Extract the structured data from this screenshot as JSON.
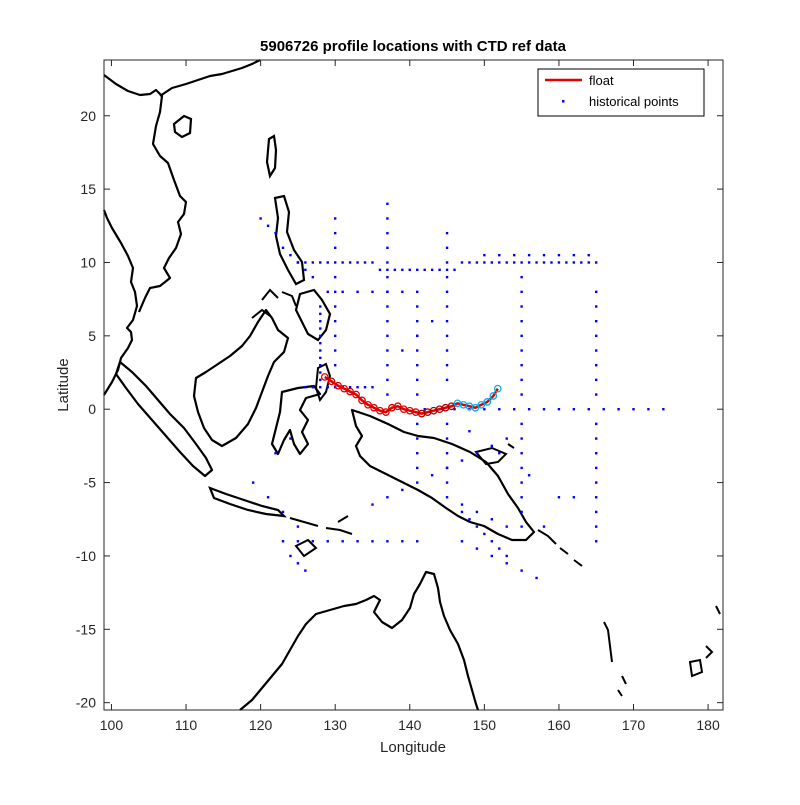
{
  "chart_data": {
    "type": "scatter",
    "title": "5906726 profile locations with CTD ref data",
    "xlabel": "Longitude",
    "ylabel": "Latitude",
    "xlim": [
      99,
      182
    ],
    "ylim": [
      -20.5,
      23.8
    ],
    "xticks": [
      100,
      110,
      120,
      130,
      140,
      150,
      160,
      170,
      180
    ],
    "yticks": [
      -20,
      -15,
      -10,
      -5,
      0,
      5,
      10,
      15,
      20
    ],
    "grid": false,
    "legend": {
      "placement": "top-right",
      "entries": [
        {
          "label": "float",
          "style": "line",
          "color": "#e00000"
        },
        {
          "label": "historical points",
          "style": "dot",
          "color": "#0000ff"
        }
      ]
    },
    "series": [
      {
        "name": "float",
        "color": "#e00000",
        "x": [
          128.6,
          129.5,
          130.4,
          131.2,
          132.0,
          132.8,
          133.6,
          134.4,
          135.2,
          136.0,
          136.8,
          137.6,
          138.4,
          139.2,
          140.0,
          140.8,
          141.6,
          142.4,
          143.2,
          144.0,
          144.8,
          145.6,
          146.4,
          147.2,
          148.0,
          148.8,
          149.6,
          150.4,
          151.2,
          151.8
        ],
        "y": [
          2.2,
          1.9,
          1.6,
          1.4,
          1.2,
          1.0,
          0.6,
          0.3,
          0.1,
          -0.1,
          -0.2,
          0.1,
          0.2,
          0.0,
          -0.1,
          -0.2,
          -0.3,
          -0.2,
          -0.1,
          0.0,
          0.1,
          0.2,
          0.4,
          0.3,
          0.2,
          0.1,
          0.3,
          0.5,
          0.9,
          1.4
        ]
      },
      {
        "name": "historical points",
        "color": "#0000ff",
        "x": [
          125,
          126,
          127,
          128,
          129,
          130,
          131,
          132,
          133,
          134,
          135,
          136,
          137,
          138,
          139,
          140,
          141,
          142,
          143,
          144,
          145,
          146,
          147,
          148,
          149,
          150,
          151,
          152,
          153,
          154,
          155,
          156,
          157,
          158,
          159,
          160,
          161,
          162,
          163,
          164,
          165,
          128,
          128,
          128,
          128,
          128,
          128,
          128,
          128,
          128,
          128,
          128,
          130,
          130,
          130,
          130,
          130,
          130,
          130,
          130,
          130,
          130,
          137,
          137,
          137,
          137,
          137,
          137,
          137,
          137,
          137,
          137,
          137,
          137,
          137,
          137,
          145,
          145,
          145,
          145,
          145,
          145,
          145,
          145,
          145,
          145,
          145,
          145,
          145,
          145,
          145,
          145,
          155,
          155,
          155,
          155,
          155,
          155,
          155,
          155,
          155,
          155,
          155,
          155,
          155,
          155,
          155,
          155,
          155,
          165,
          165,
          165,
          165,
          165,
          165,
          165,
          165,
          165,
          165,
          165,
          165,
          165,
          165,
          165,
          165,
          165,
          141,
          141,
          141,
          141,
          141,
          141,
          141,
          141,
          141,
          141,
          141,
          141,
          142,
          144,
          146,
          148,
          150,
          152,
          154,
          156,
          158,
          160,
          162,
          164,
          166,
          168,
          170,
          172,
          174,
          129,
          131,
          133,
          135,
          137,
          139,
          150,
          152,
          154,
          156,
          158,
          160,
          162,
          164,
          145,
          147,
          149,
          151,
          153,
          147,
          149,
          151,
          153,
          155,
          157,
          123,
          125,
          127,
          129,
          131,
          133,
          135,
          137,
          139,
          141,
          126,
          127,
          128,
          129,
          130,
          131,
          132,
          133,
          134,
          135,
          153,
          151,
          149,
          147,
          145,
          143,
          141,
          139,
          137,
          135,
          147,
          148,
          149,
          150,
          151,
          152,
          153,
          148,
          152,
          156,
          160,
          158,
          162,
          139,
          141,
          143,
          120,
          121,
          122,
          123,
          124,
          125,
          126,
          127,
          119,
          121,
          123,
          125,
          124,
          125,
          126,
          124,
          122
        ],
        "y": [
          10,
          10,
          10,
          10,
          10,
          10,
          10,
          10,
          10,
          10,
          10,
          9.5,
          9.5,
          9.5,
          9.5,
          9.5,
          9.5,
          9.5,
          9.5,
          9.5,
          9.5,
          9.5,
          10,
          10,
          10,
          10,
          10,
          10,
          10,
          10,
          10,
          10,
          10,
          10,
          10,
          10,
          10,
          10,
          10,
          10,
          10,
          7,
          6.5,
          6,
          5.5,
          5,
          4.5,
          4,
          3.5,
          3,
          2.5,
          2,
          13,
          12,
          11,
          9,
          8,
          7,
          6,
          5,
          4,
          3,
          14,
          13,
          12,
          11,
          10,
          9,
          8,
          7,
          6,
          5,
          4,
          3,
          2,
          1,
          12,
          11,
          10,
          9,
          8,
          7,
          6,
          5,
          4,
          3,
          2,
          -1,
          -2,
          -3,
          -4,
          -5,
          9,
          8,
          7,
          6,
          5,
          4,
          3,
          2,
          1,
          -1,
          -2,
          -3,
          -4,
          -5,
          -6,
          -7,
          -8,
          8,
          7,
          6,
          5,
          4,
          3,
          2,
          1,
          -1,
          -2,
          -3,
          -4,
          -5,
          -6,
          -7,
          -8,
          -9,
          8,
          7,
          6,
          5,
          4,
          3,
          2,
          1,
          -1,
          -2,
          -3,
          -4,
          0,
          0,
          0,
          0,
          0,
          0,
          0,
          0,
          0,
          0,
          0,
          0,
          0,
          0,
          0,
          0,
          0,
          8,
          8,
          8,
          8,
          8,
          8,
          10.5,
          10.5,
          10.5,
          10.5,
          10.5,
          10.5,
          10.5,
          10.5,
          -6,
          -6.5,
          -7,
          -7.5,
          -8,
          -9,
          -9.5,
          -10,
          -10.5,
          -11,
          -11.5,
          -9,
          -9,
          -9,
          -9,
          -9,
          -9,
          -9,
          -9,
          -9,
          -9,
          1.5,
          1.5,
          1.5,
          1.5,
          1.5,
          1.5,
          1.5,
          1.5,
          1.5,
          1.5,
          -2,
          -2.5,
          -3,
          -3.5,
          -4,
          -4.5,
          -5,
          -5.5,
          -6,
          -6.5,
          -7,
          -7.5,
          -8,
          -8.5,
          -9,
          -9.5,
          -10,
          -1.5,
          -3,
          -4.5,
          -6,
          -8,
          -6,
          4,
          5,
          6,
          13,
          12.5,
          12,
          11,
          10.5,
          10,
          9.5,
          9,
          -5,
          -6,
          -7,
          -8,
          -10,
          -10.5,
          -11,
          -2,
          -3
        ]
      }
    ]
  }
}
